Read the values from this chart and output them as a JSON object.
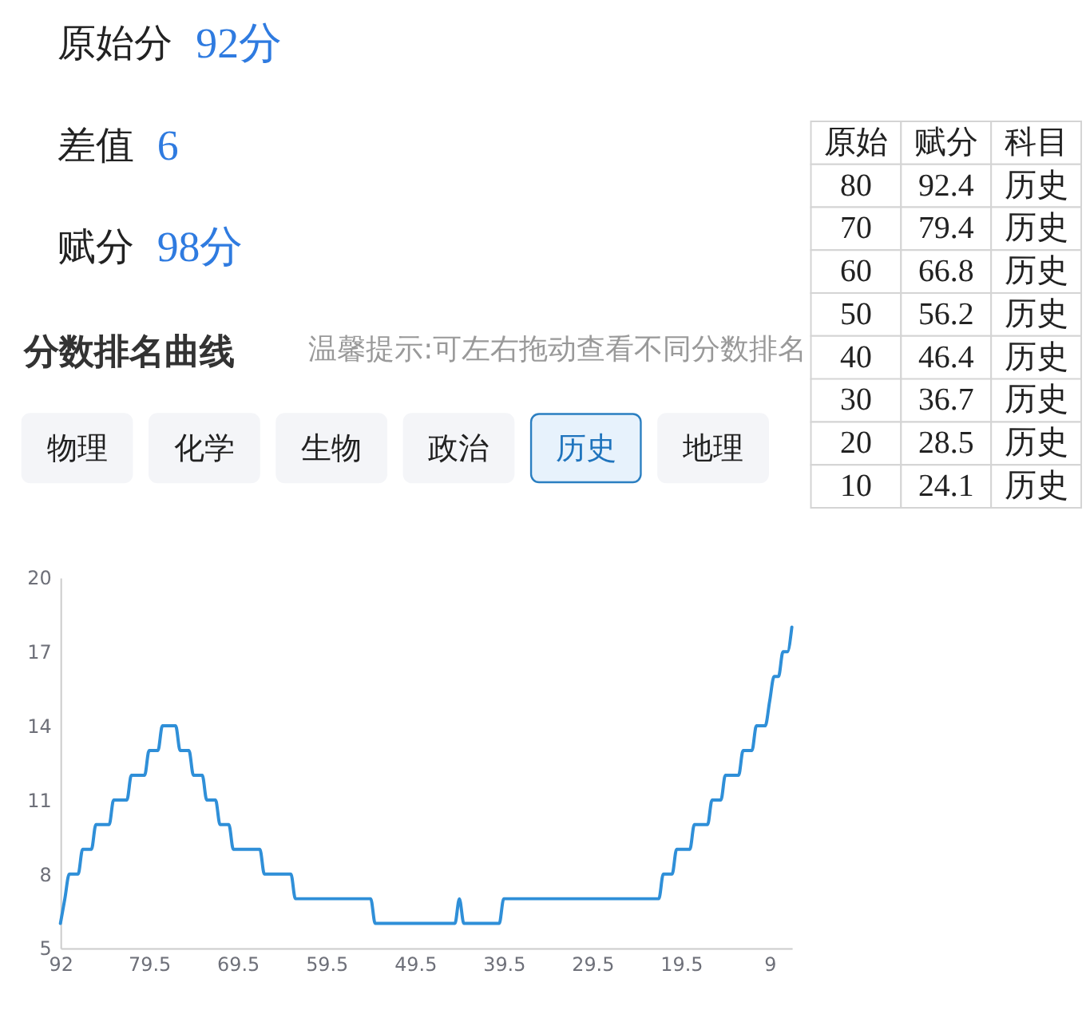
{
  "chart_data": [
    {
      "type": "other",
      "categories": [
        "原始分",
        "差值",
        "赋分"
      ],
      "value_labels": [
        "92分",
        "6",
        "98分"
      ],
      "color": "#2f7be0"
    },
    {
      "type": "other",
      "title": "分数排名曲线",
      "subtitle": "温馨提示:可左右拖动查看不同分数排名",
      "categories": [
        "物理",
        "化学",
        "生物",
        "政治",
        "历史",
        "地理"
      ],
      "colors": [
        "#f4f5f8",
        "#f4f5f8",
        "#f4f5f8",
        "#f4f5f8",
        "#e7f2fc",
        "#f4f5f8"
      ]
    },
    {
      "type": "line",
      "categories": [
        "92",
        null,
        null,
        null,
        null,
        null,
        null,
        null,
        null,
        null,
        null,
        null,
        null,
        null,
        null,
        null,
        null,
        null,
        null,
        null,
        "79.5",
        null,
        null,
        null,
        null,
        null,
        null,
        null,
        null,
        null,
        null,
        null,
        null,
        null,
        null,
        null,
        null,
        null,
        null,
        null,
        "69.5",
        null,
        null,
        null,
        null,
        null,
        null,
        null,
        null,
        null,
        null,
        null,
        null,
        null,
        null,
        null,
        null,
        null,
        null,
        null,
        "59.5",
        null,
        null,
        null,
        null,
        null,
        null,
        null,
        null,
        null,
        null,
        null,
        null,
        null,
        null,
        null,
        null,
        null,
        null,
        null,
        "49.5",
        null,
        null,
        null,
        null,
        null,
        null,
        null,
        null,
        null,
        null,
        null,
        null,
        null,
        null,
        null,
        null,
        null,
        null,
        null,
        "39.5",
        null,
        null,
        null,
        null,
        null,
        null,
        null,
        null,
        null,
        null,
        null,
        null,
        null,
        null,
        null,
        null,
        null,
        null,
        null,
        "29.5",
        null,
        null,
        null,
        null,
        null,
        null,
        null,
        null,
        null,
        null,
        null,
        null,
        null,
        null,
        null,
        null,
        null,
        null,
        null,
        "19.5",
        null,
        null,
        null,
        null,
        null,
        null,
        null,
        null,
        null,
        null,
        null,
        null,
        null,
        null,
        null,
        null,
        null,
        null,
        null,
        "9",
        null,
        null,
        null,
        null,
        null
      ],
      "series": [
        {
          "color": "#2f8fd8",
          "values": [
            6,
            7,
            8,
            8,
            8,
            9,
            9,
            9,
            10,
            10,
            10,
            10,
            11,
            11,
            11,
            11,
            12,
            12,
            12,
            12,
            13,
            13,
            13,
            14,
            14,
            14,
            14,
            13,
            13,
            13,
            12,
            12,
            12,
            11,
            11,
            11,
            10,
            10,
            10,
            9,
            9,
            9,
            9,
            9,
            9,
            9,
            8,
            8,
            8,
            8,
            8,
            8,
            8,
            7,
            7,
            7,
            7,
            7,
            7,
            7,
            7,
            7,
            7,
            7,
            7,
            7,
            7,
            7,
            7,
            7,
            7,
            6,
            6,
            6,
            6,
            6,
            6,
            6,
            6,
            6,
            6,
            6,
            6,
            6,
            6,
            6,
            6,
            6,
            6,
            6,
            7,
            6,
            6,
            6,
            6,
            6,
            6,
            6,
            6,
            6,
            7,
            7,
            7,
            7,
            7,
            7,
            7,
            7,
            7,
            7,
            7,
            7,
            7,
            7,
            7,
            7,
            7,
            7,
            7,
            7,
            7,
            7,
            7,
            7,
            7,
            7,
            7,
            7,
            7,
            7,
            7,
            7,
            7,
            7,
            7,
            7,
            8,
            8,
            8,
            9,
            9,
            9,
            9,
            10,
            10,
            10,
            10,
            11,
            11,
            11,
            12,
            12,
            12,
            12,
            13,
            13,
            13,
            14,
            14,
            14,
            15,
            16,
            16,
            17,
            17,
            18
          ]
        }
      ],
      "ylim": [
        5,
        20
      ],
      "yticks": [
        5,
        8,
        11,
        14,
        17,
        20
      ]
    },
    {
      "type": "heatmap",
      "ylabel": "原始",
      "categories": [
        "赋分",
        "科目"
      ],
      "y_categories": [
        "80",
        "70",
        "60",
        "50",
        "40",
        "30",
        "20",
        "10"
      ],
      "cells": [
        [
          null,
          null
        ],
        [
          null,
          null
        ],
        [
          null,
          null
        ],
        [
          null,
          null
        ],
        [
          null,
          null
        ],
        [
          null,
          null
        ],
        [
          null,
          null
        ],
        [
          null,
          null
        ]
      ],
      "cell_labels": [
        [
          "92.4",
          "历史"
        ],
        [
          "79.4",
          "历史"
        ],
        [
          "66.8",
          "历史"
        ],
        [
          "56.2",
          "历史"
        ],
        [
          "46.4",
          "历史"
        ],
        [
          "36.7",
          "历史"
        ],
        [
          "28.5",
          "历史"
        ],
        [
          "24.1",
          "历史"
        ]
      ]
    }
  ]
}
